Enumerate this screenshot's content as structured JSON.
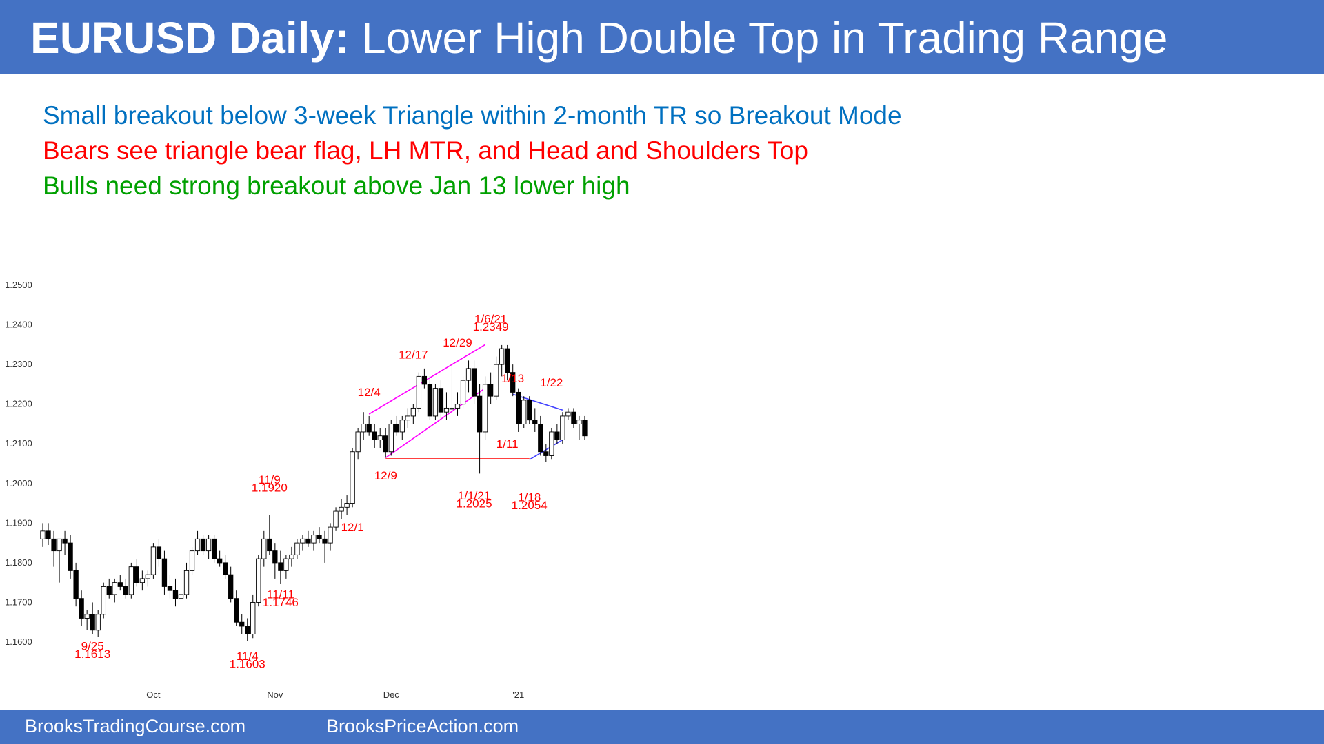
{
  "header": {
    "title_bold": "EURUSD Daily:",
    "title_rest": " Lower High Double Top in Trading Range",
    "background": "#4472c4"
  },
  "bullets": [
    {
      "text": "Small breakout below 3-week Triangle within 2-month TR so Breakout Mode",
      "color": "#0070c0"
    },
    {
      "text": "Bears see triangle bear flag, LH MTR, and Head and Shoulders Top",
      "color": "#ff0000"
    },
    {
      "text": "Bulls need strong breakout above Jan 13 lower high",
      "color": "#00a000"
    }
  ],
  "footer": {
    "left": "BrooksTradingCourse.com",
    "right": "BrooksPriceAction.com"
  },
  "chart_data": {
    "type": "candlestick",
    "title": "",
    "xlabel": "",
    "ylabel": "",
    "ylim": [
      1.155,
      1.255
    ],
    "yticks": [
      "1.2500",
      "1.2400",
      "1.2300",
      "1.2200",
      "1.2100",
      "1.2000",
      "1.1900",
      "1.1800",
      "1.1700",
      "1.1600"
    ],
    "xticks": [
      {
        "label": "Oct",
        "index": 20
      },
      {
        "label": "Nov",
        "index": 42
      },
      {
        "label": "Dec",
        "index": 63
      },
      {
        "label": "'21",
        "index": 86
      }
    ],
    "candles": [
      [
        1.186,
        1.19,
        1.184,
        1.188
      ],
      [
        1.188,
        1.19,
        1.1845,
        1.186
      ],
      [
        1.186,
        1.188,
        1.179,
        1.183
      ],
      [
        1.183,
        1.186,
        1.175,
        1.186
      ],
      [
        1.186,
        1.188,
        1.182,
        1.185
      ],
      [
        1.185,
        1.187,
        1.176,
        1.178
      ],
      [
        1.178,
        1.18,
        1.169,
        1.171
      ],
      [
        1.171,
        1.173,
        1.164,
        1.166
      ],
      [
        1.166,
        1.168,
        1.163,
        1.167
      ],
      [
        1.167,
        1.17,
        1.162,
        1.163
      ],
      [
        1.163,
        1.168,
        1.1613,
        1.167
      ],
      [
        1.167,
        1.175,
        1.166,
        1.174
      ],
      [
        1.174,
        1.176,
        1.171,
        1.172
      ],
      [
        1.172,
        1.176,
        1.17,
        1.175
      ],
      [
        1.175,
        1.177,
        1.173,
        1.174
      ],
      [
        1.174,
        1.176,
        1.171,
        1.172
      ],
      [
        1.172,
        1.18,
        1.171,
        1.179
      ],
      [
        1.179,
        1.181,
        1.174,
        1.175
      ],
      [
        1.175,
        1.178,
        1.173,
        1.176
      ],
      [
        1.176,
        1.178,
        1.174,
        1.177
      ],
      [
        1.177,
        1.185,
        1.176,
        1.184
      ],
      [
        1.184,
        1.186,
        1.179,
        1.181
      ],
      [
        1.181,
        1.183,
        1.172,
        1.174
      ],
      [
        1.174,
        1.177,
        1.171,
        1.173
      ],
      [
        1.173,
        1.176,
        1.169,
        1.171
      ],
      [
        1.171,
        1.174,
        1.17,
        1.172
      ],
      [
        1.172,
        1.18,
        1.171,
        1.178
      ],
      [
        1.178,
        1.184,
        1.177,
        1.183
      ],
      [
        1.183,
        1.188,
        1.182,
        1.186
      ],
      [
        1.186,
        1.187,
        1.182,
        1.183
      ],
      [
        1.183,
        1.187,
        1.181,
        1.186
      ],
      [
        1.186,
        1.187,
        1.18,
        1.181
      ],
      [
        1.181,
        1.183,
        1.179,
        1.18
      ],
      [
        1.18,
        1.182,
        1.176,
        1.177
      ],
      [
        1.177,
        1.179,
        1.17,
        1.171
      ],
      [
        1.171,
        1.173,
        1.164,
        1.165
      ],
      [
        1.165,
        1.167,
        1.162,
        1.164
      ],
      [
        1.164,
        1.166,
        1.1603,
        1.162
      ],
      [
        1.162,
        1.172,
        1.161,
        1.17
      ],
      [
        1.17,
        1.182,
        1.169,
        1.181
      ],
      [
        1.181,
        1.188,
        1.179,
        1.186
      ],
      [
        1.186,
        1.192,
        1.182,
        1.183
      ],
      [
        1.183,
        1.185,
        1.176,
        1.18
      ],
      [
        1.18,
        1.183,
        1.1746,
        1.178
      ],
      [
        1.178,
        1.182,
        1.176,
        1.181
      ],
      [
        1.181,
        1.184,
        1.179,
        1.182
      ],
      [
        1.182,
        1.186,
        1.181,
        1.185
      ],
      [
        1.185,
        1.187,
        1.183,
        1.186
      ],
      [
        1.186,
        1.188,
        1.184,
        1.185
      ],
      [
        1.185,
        1.188,
        1.183,
        1.187
      ],
      [
        1.187,
        1.189,
        1.185,
        1.186
      ],
      [
        1.186,
        1.188,
        1.18,
        1.185
      ],
      [
        1.185,
        1.19,
        1.183,
        1.189
      ],
      [
        1.189,
        1.194,
        1.188,
        1.193
      ],
      [
        1.193,
        1.196,
        1.191,
        1.194
      ],
      [
        1.194,
        1.197,
        1.192,
        1.195
      ],
      [
        1.195,
        1.209,
        1.194,
        1.208
      ],
      [
        1.208,
        1.214,
        1.206,
        1.213
      ],
      [
        1.213,
        1.218,
        1.211,
        1.215
      ],
      [
        1.215,
        1.217,
        1.212,
        1.213
      ],
      [
        1.213,
        1.215,
        1.209,
        1.211
      ],
      [
        1.211,
        1.214,
        1.209,
        1.212
      ],
      [
        1.212,
        1.214,
        1.2065,
        1.208
      ],
      [
        1.208,
        1.216,
        1.207,
        1.215
      ],
      [
        1.215,
        1.217,
        1.212,
        1.213
      ],
      [
        1.213,
        1.217,
        1.211,
        1.216
      ],
      [
        1.216,
        1.219,
        1.214,
        1.217
      ],
      [
        1.217,
        1.22,
        1.215,
        1.219
      ],
      [
        1.219,
        1.228,
        1.218,
        1.227
      ],
      [
        1.227,
        1.229,
        1.224,
        1.225
      ],
      [
        1.225,
        1.227,
        1.216,
        1.217
      ],
      [
        1.217,
        1.225,
        1.216,
        1.224
      ],
      [
        1.224,
        1.226,
        1.216,
        1.218
      ],
      [
        1.218,
        1.223,
        1.216,
        1.219
      ],
      [
        1.219,
        1.23,
        1.218,
        1.219
      ],
      [
        1.219,
        1.223,
        1.217,
        1.22
      ],
      [
        1.22,
        1.227,
        1.219,
        1.226
      ],
      [
        1.226,
        1.231,
        1.223,
        1.229
      ],
      [
        1.229,
        1.231,
        1.22,
        1.222
      ],
      [
        1.222,
        1.225,
        1.2025,
        1.213
      ],
      [
        1.213,
        1.227,
        1.211,
        1.225
      ],
      [
        1.225,
        1.228,
        1.22,
        1.222
      ],
      [
        1.222,
        1.232,
        1.221,
        1.23
      ],
      [
        1.23,
        1.2349,
        1.227,
        1.234
      ],
      [
        1.234,
        1.2349,
        1.226,
        1.228
      ],
      [
        1.228,
        1.23,
        1.222,
        1.223
      ],
      [
        1.223,
        1.224,
        1.213,
        1.215
      ],
      [
        1.215,
        1.222,
        1.214,
        1.221
      ],
      [
        1.221,
        1.222,
        1.215,
        1.216
      ],
      [
        1.216,
        1.219,
        1.213,
        1.215
      ],
      [
        1.215,
        1.217,
        1.207,
        1.208
      ],
      [
        1.208,
        1.21,
        1.2054,
        1.207
      ],
      [
        1.207,
        1.214,
        1.206,
        1.213
      ],
      [
        1.213,
        1.215,
        1.21,
        1.211
      ],
      [
        1.211,
        1.218,
        1.21,
        1.217
      ],
      [
        1.217,
        1.219,
        1.216,
        1.218
      ],
      [
        1.218,
        1.219,
        1.214,
        1.215
      ],
      [
        1.215,
        1.217,
        1.211,
        1.216
      ],
      [
        1.216,
        1.217,
        1.211,
        1.212
      ]
    ],
    "annotations": [
      {
        "text": "9/25",
        "color": "#ff0000",
        "x": 9,
        "y": 1.158
      },
      {
        "text": "1.1613",
        "color": "#ff0000",
        "x": 9,
        "y": 1.156
      },
      {
        "text": "11/4",
        "color": "#ff0000",
        "x": 37,
        "y": 1.1555
      },
      {
        "text": "1.1603",
        "color": "#ff0000",
        "x": 37,
        "y": 1.1535
      },
      {
        "text": "11/9",
        "color": "#ff0000",
        "x": 41,
        "y": 1.2
      },
      {
        "text": "1.1920",
        "color": "#ff0000",
        "x": 41,
        "y": 1.198
      },
      {
        "text": "11/11",
        "color": "#ff0000",
        "x": 43,
        "y": 1.171
      },
      {
        "text": "1.1746",
        "color": "#ff0000",
        "x": 43,
        "y": 1.169
      },
      {
        "text": "12/1",
        "color": "#ff0000",
        "x": 56,
        "y": 1.188
      },
      {
        "text": "12/4",
        "color": "#ff0000",
        "x": 59,
        "y": 1.222
      },
      {
        "text": "12/9",
        "color": "#ff0000",
        "x": 62,
        "y": 1.201
      },
      {
        "text": "12/17",
        "color": "#ff0000",
        "x": 67,
        "y": 1.2315
      },
      {
        "text": "12/29",
        "color": "#ff0000",
        "x": 75,
        "y": 1.2345
      },
      {
        "text": "1/1/21",
        "color": "#ff0000",
        "x": 78,
        "y": 1.196
      },
      {
        "text": "1.2025",
        "color": "#ff0000",
        "x": 78,
        "y": 1.194
      },
      {
        "text": "1/6/21",
        "color": "#ff0000",
        "x": 81,
        "y": 1.2405
      },
      {
        "text": "1.2349",
        "color": "#ff0000",
        "x": 81,
        "y": 1.2385
      },
      {
        "text": "1/13",
        "color": "#ff0000",
        "x": 85,
        "y": 1.2255
      },
      {
        "text": "1/11",
        "color": "#ff0000",
        "x": 84,
        "y": 1.209
      },
      {
        "text": "1/18",
        "color": "#ff0000",
        "x": 88,
        "y": 1.1955
      },
      {
        "text": "1.2054",
        "color": "#ff0000",
        "x": 88,
        "y": 1.1935
      },
      {
        "text": "1/22",
        "color": "#ff0000",
        "x": 92,
        "y": 1.2245
      }
    ],
    "trendlines": [
      {
        "color": "#ff00ff",
        "points": [
          [
            59,
            1.2175
          ],
          [
            80,
            1.235
          ]
        ]
      },
      {
        "color": "#ff00ff",
        "points": [
          [
            62,
            1.2065
          ],
          [
            81,
            1.225
          ]
        ]
      },
      {
        "color": "#ff0000",
        "points": [
          [
            62,
            1.2062
          ],
          [
            88,
            1.2062
          ]
        ]
      },
      {
        "color": "#4040ff",
        "points": [
          [
            85,
            1.2225
          ],
          [
            94,
            1.2185
          ]
        ]
      },
      {
        "color": "#4040ff",
        "points": [
          [
            88,
            1.206
          ],
          [
            94,
            1.211
          ]
        ]
      }
    ],
    "grid": false,
    "legend": "none"
  }
}
